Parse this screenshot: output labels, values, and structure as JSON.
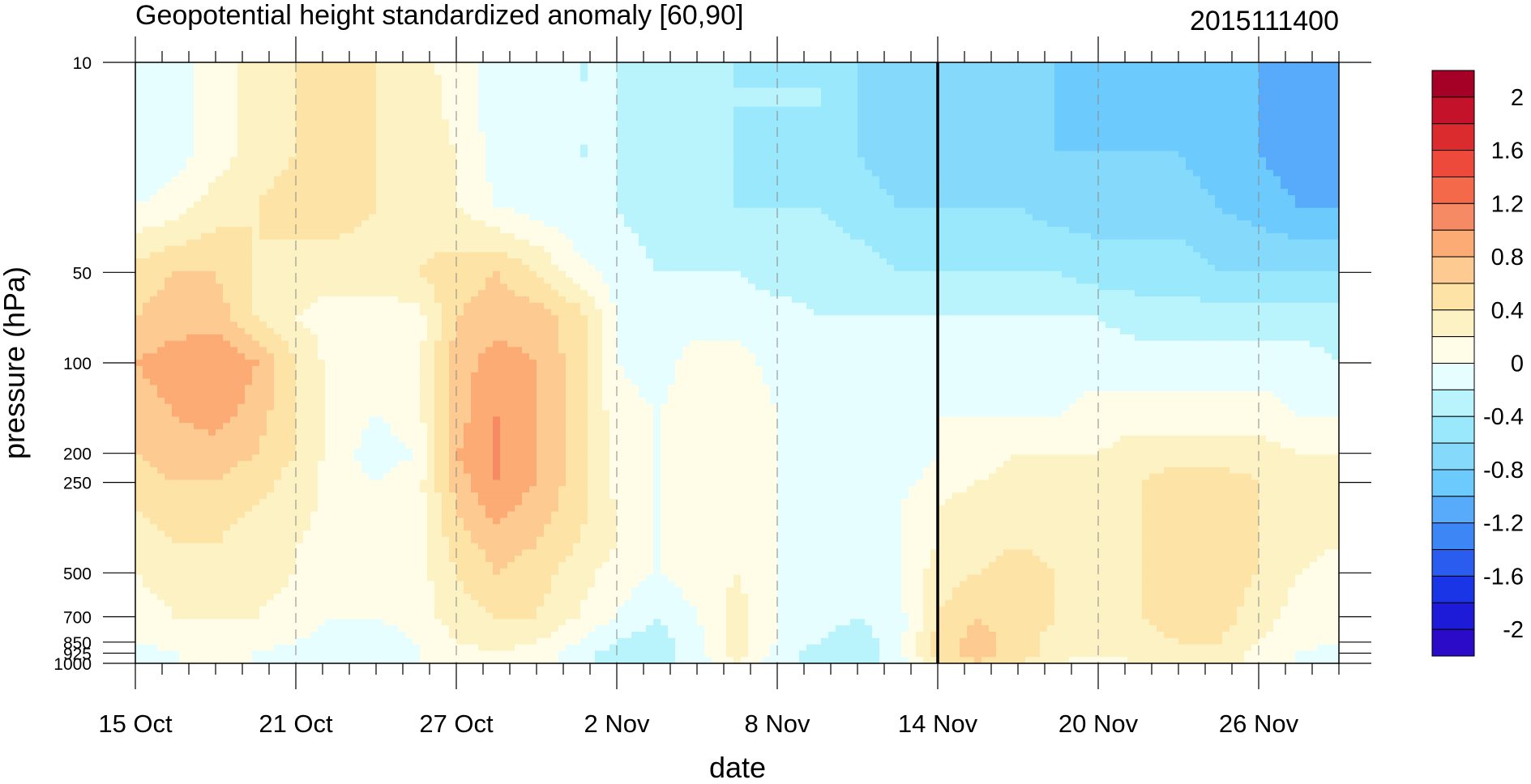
{
  "chart_data": {
    "type": "heatmap",
    "subtype": "filled-contour time-pressure cross section",
    "title": "Geopotential height standardized anomaly [60,90]",
    "date_stamp": "2015111400",
    "xlabel": "date",
    "ylabel": "pressure (hPa)",
    "x_ticks": [
      "15 Oct",
      "21 Oct",
      "27 Oct",
      "2 Nov",
      "8 Nov",
      "14 Nov",
      "20 Nov",
      "26 Nov"
    ],
    "x_tick_days": [
      0,
      6,
      12,
      18,
      24,
      30,
      36,
      42
    ],
    "x_range_days": [
      0,
      45
    ],
    "y_ticks": [
      "10",
      "50",
      "100",
      "200",
      "250",
      "500",
      "700",
      "850",
      "925",
      "1000"
    ],
    "y_tick_values": [
      10,
      50,
      100,
      200,
      250,
      500,
      700,
      850,
      925,
      1000
    ],
    "y_scale": "log, reversed",
    "current_date_line": "14 Nov",
    "colorbar": {
      "labels": [
        "2",
        "1.6",
        "1.2",
        "0.8",
        "0.4",
        "0",
        "-0.4",
        "-0.8",
        "-1.2",
        "-1.6",
        "-2"
      ],
      "levels": [
        2.0,
        1.8,
        1.6,
        1.4,
        1.2,
        1.0,
        0.8,
        0.6,
        0.4,
        0.2,
        0.0,
        -0.2,
        -0.4,
        -0.6,
        -0.8,
        -1.0,
        -1.2,
        -1.4,
        -1.6,
        -1.8,
        -2.0
      ],
      "colors": [
        "#a50026",
        "#c4122a",
        "#dc2b2e",
        "#ee4a3c",
        "#f4694a",
        "#f58a64",
        "#fcab74",
        "#fdcb92",
        "#fde3a6",
        "#fdf2c4",
        "#fffde8",
        "#e6feff",
        "#b9f3fc",
        "#9ae8fb",
        "#85dafb",
        "#6ccafc",
        "#58abfb",
        "#3d86f6",
        "#2a5cef",
        "#1a35e6",
        "#1d1ad8",
        "#2c0bc8"
      ]
    },
    "grid": "dashed vertical lines at date ticks",
    "levels_days": [
      0,
      1.5,
      3,
      4.5,
      6,
      7.5,
      9,
      10.5,
      12,
      13.5,
      15,
      16.5,
      18,
      19.5,
      21,
      22.5,
      24,
      25.5,
      27,
      28.5,
      30,
      31.5,
      33,
      34.5,
      36,
      37.5,
      39,
      40.5,
      42,
      43.5,
      45
    ],
    "pressure_levels": [
      10,
      20,
      30,
      50,
      70,
      100,
      150,
      200,
      250,
      300,
      400,
      500,
      700,
      850,
      925,
      1000
    ],
    "anomaly_field": [
      [
        -0.4,
        -0.3,
        -0.1,
        0.1,
        0.2,
        0.3,
        0.2,
        0.1,
        -0.1,
        -0.3,
        -0.3,
        -0.4,
        -0.4,
        -0.5,
        -0.5,
        -0.6,
        -0.6,
        -0.6,
        -0.8,
        -0.9,
        -0.9,
        -0.9,
        -0.9,
        -1.0,
        -1.1,
        -1.0,
        -1.0,
        -1.1,
        -1.2,
        -1.3,
        -1.3
      ],
      [
        -0.4,
        -0.3,
        -0.1,
        0.1,
        0.2,
        0.3,
        0.2,
        0.1,
        0.0,
        -0.3,
        -0.3,
        -0.4,
        -0.4,
        -0.5,
        -0.5,
        -0.6,
        -0.6,
        -0.6,
        -0.8,
        -0.9,
        -0.9,
        -0.9,
        -0.9,
        -1.0,
        -1.0,
        -1.0,
        -1.0,
        -1.1,
        -1.2,
        -1.3,
        -1.3
      ],
      [
        -0.2,
        -0.1,
        0.1,
        0.2,
        0.3,
        0.3,
        0.2,
        0.1,
        0.0,
        -0.2,
        -0.3,
        -0.4,
        -0.4,
        -0.5,
        -0.5,
        -0.6,
        -0.6,
        -0.6,
        -0.7,
        -0.8,
        -0.8,
        -0.8,
        -0.8,
        -0.9,
        -0.9,
        -0.9,
        -0.9,
        -1.0,
        -1.1,
        -1.2,
        -1.2
      ],
      [
        0.3,
        0.4,
        0.4,
        0.2,
        0.1,
        0.1,
        0.1,
        0.2,
        0.3,
        0.4,
        0.2,
        -0.1,
        -0.3,
        -0.4,
        -0.4,
        -0.4,
        -0.5,
        -0.5,
        -0.5,
        -0.6,
        -0.6,
        -0.6,
        -0.6,
        -0.6,
        -0.7,
        -0.7,
        -0.7,
        -0.8,
        -0.8,
        -0.8,
        -0.8
      ],
      [
        0.4,
        0.5,
        0.5,
        0.2,
        0.0,
        -0.1,
        -0.1,
        -0.1,
        0.4,
        0.5,
        0.5,
        0.3,
        -0.2,
        -0.3,
        -0.3,
        -0.3,
        -0.3,
        -0.4,
        -0.4,
        -0.4,
        -0.4,
        -0.4,
        -0.4,
        -0.4,
        -0.4,
        -0.5,
        -0.5,
        -0.5,
        -0.5,
        -0.5,
        -0.5
      ],
      [
        0.6,
        0.7,
        0.8,
        0.6,
        0.2,
        -0.1,
        -0.1,
        -0.1,
        0.5,
        0.7,
        0.6,
        0.3,
        -0.2,
        -0.3,
        -0.1,
        -0.1,
        -0.3,
        -0.4,
        -0.4,
        -0.4,
        -0.3,
        -0.3,
        -0.3,
        -0.3,
        -0.3,
        -0.3,
        -0.3,
        -0.3,
        -0.3,
        -0.3,
        -0.4
      ],
      [
        0.5,
        0.6,
        0.7,
        0.5,
        0.2,
        -0.1,
        -0.2,
        -0.1,
        0.5,
        0.8,
        0.6,
        0.3,
        -0.1,
        -0.2,
        -0.1,
        0.0,
        -0.2,
        -0.3,
        -0.4,
        -0.4,
        -0.2,
        -0.2,
        -0.2,
        -0.2,
        -0.1,
        -0.1,
        -0.1,
        -0.1,
        -0.1,
        -0.2,
        -0.2
      ],
      [
        0.4,
        0.5,
        0.5,
        0.4,
        0.2,
        -0.1,
        -0.3,
        -0.2,
        0.6,
        0.8,
        0.6,
        0.3,
        -0.1,
        -0.2,
        -0.1,
        0.0,
        -0.2,
        -0.3,
        -0.4,
        -0.4,
        -0.2,
        -0.1,
        0.0,
        0.0,
        0.0,
        0.1,
        0.1,
        0.1,
        0.1,
        0.0,
        0.0
      ],
      [
        0.3,
        0.4,
        0.4,
        0.3,
        0.1,
        -0.1,
        -0.2,
        -0.1,
        0.5,
        0.8,
        0.6,
        0.3,
        -0.1,
        -0.2,
        -0.1,
        0.0,
        -0.2,
        -0.3,
        -0.3,
        -0.3,
        -0.1,
        0.0,
        0.1,
        0.1,
        0.1,
        0.2,
        0.3,
        0.3,
        0.2,
        0.1,
        0.0
      ],
      [
        0.2,
        0.3,
        0.3,
        0.2,
        0.1,
        -0.1,
        -0.1,
        -0.1,
        0.4,
        0.7,
        0.5,
        0.3,
        0.0,
        -0.2,
        -0.1,
        0.0,
        -0.2,
        -0.3,
        -0.3,
        -0.2,
        0.0,
        0.1,
        0.1,
        0.1,
        0.1,
        0.2,
        0.3,
        0.3,
        0.2,
        0.1,
        0.0
      ],
      [
        0.1,
        0.2,
        0.2,
        0.1,
        0.0,
        -0.1,
        -0.1,
        -0.1,
        0.3,
        0.5,
        0.4,
        0.2,
        0.0,
        -0.2,
        -0.1,
        0.0,
        -0.2,
        -0.3,
        -0.3,
        -0.2,
        0.0,
        0.1,
        0.2,
        0.1,
        0.1,
        0.2,
        0.3,
        0.3,
        0.2,
        0.1,
        0.0
      ],
      [
        0.0,
        0.1,
        0.1,
        0.1,
        0.0,
        -0.1,
        -0.2,
        -0.1,
        0.2,
        0.4,
        0.3,
        0.1,
        -0.1,
        -0.2,
        -0.1,
        0.0,
        -0.2,
        -0.3,
        -0.3,
        -0.2,
        0.1,
        0.2,
        0.3,
        0.2,
        0.1,
        0.2,
        0.3,
        0.3,
        0.2,
        0.0,
        -0.1
      ],
      [
        -0.1,
        0.0,
        0.0,
        0.0,
        -0.1,
        -0.2,
        -0.2,
        -0.1,
        0.1,
        0.2,
        0.2,
        0.0,
        -0.2,
        -0.4,
        -0.2,
        0.1,
        -0.2,
        -0.3,
        -0.4,
        -0.3,
        0.2,
        0.4,
        0.3,
        0.2,
        0.1,
        0.2,
        0.3,
        0.3,
        0.1,
        -0.1,
        -0.2
      ],
      [
        -0.2,
        -0.1,
        -0.1,
        -0.1,
        -0.2,
        -0.3,
        -0.3,
        -0.2,
        0.0,
        0.1,
        0.0,
        -0.2,
        -0.4,
        -0.5,
        -0.3,
        0.1,
        -0.2,
        -0.4,
        -0.5,
        -0.3,
        0.3,
        0.5,
        0.3,
        0.1,
        0.0,
        0.1,
        0.2,
        0.2,
        0.0,
        -0.1,
        -0.2
      ],
      [
        -0.3,
        -0.2,
        -0.1,
        -0.2,
        -0.3,
        -0.4,
        -0.3,
        -0.2,
        -0.1,
        0.0,
        -0.1,
        -0.3,
        -0.5,
        -0.5,
        -0.3,
        0.1,
        -0.3,
        -0.5,
        -0.5,
        -0.3,
        0.3,
        0.5,
        0.3,
        0.1,
        0.0,
        0.1,
        0.2,
        0.2,
        -0.1,
        -0.2,
        -0.3
      ],
      [
        -0.3,
        -0.2,
        -0.1,
        -0.2,
        -0.3,
        -0.4,
        -0.3,
        -0.2,
        -0.1,
        0.0,
        -0.1,
        -0.3,
        -0.5,
        -0.5,
        -0.3,
        0.0,
        -0.3,
        -0.5,
        -0.5,
        -0.3,
        0.2,
        0.4,
        0.2,
        0.0,
        -0.1,
        0.0,
        0.1,
        0.1,
        -0.1,
        -0.2,
        -0.3
      ]
    ]
  }
}
